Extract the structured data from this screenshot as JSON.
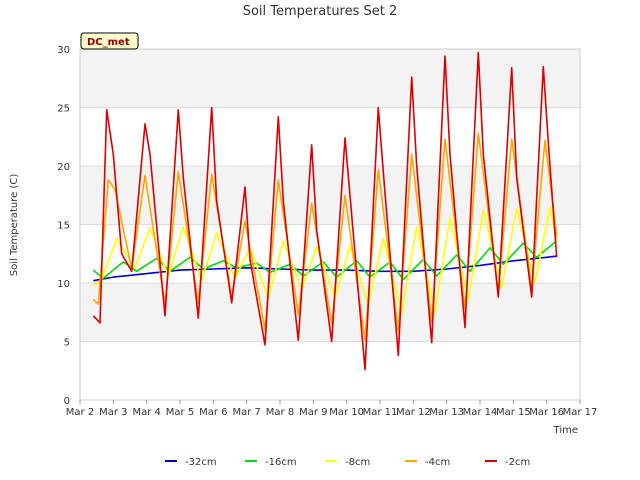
{
  "chart_data": {
    "type": "line",
    "title": "Soil Temperatures Set 2",
    "xlabel": "Time",
    "ylabel": "Soil Temperature (C)",
    "ylim": [
      0,
      30
    ],
    "xlim": [
      0,
      15
    ],
    "x_ticks": [
      {
        "pos": 0,
        "label": "Mar 2"
      },
      {
        "pos": 1,
        "label": "Mar 3"
      },
      {
        "pos": 2,
        "label": "Mar 4"
      },
      {
        "pos": 3,
        "label": "Mar 5"
      },
      {
        "pos": 4,
        "label": "Mar 6"
      },
      {
        "pos": 5,
        "label": "Mar 7"
      },
      {
        "pos": 6,
        "label": "Mar 8"
      },
      {
        "pos": 7,
        "label": "Mar 9"
      },
      {
        "pos": 8,
        "label": "Mar 10"
      },
      {
        "pos": 9,
        "label": "Mar 11"
      },
      {
        "pos": 10,
        "label": "Mar 12"
      },
      {
        "pos": 11,
        "label": "Mar 13"
      },
      {
        "pos": 12,
        "label": "Mar 14"
      },
      {
        "pos": 13,
        "label": "Mar 15"
      },
      {
        "pos": 14,
        "label": "Mar 16"
      },
      {
        "pos": 15,
        "label": "Mar 17"
      }
    ],
    "y_ticks": [
      0,
      5,
      10,
      15,
      20,
      25,
      30
    ],
    "grid": true,
    "legend_position": "bottom",
    "badge": "DC_met",
    "series": [
      {
        "name": "-32cm",
        "color": "#0000cc",
        "x": [
          0.4,
          1,
          2,
          3,
          4,
          5,
          6,
          7,
          8,
          9,
          10,
          11,
          12,
          13,
          14,
          14.3
        ],
        "y": [
          10.2,
          10.5,
          10.8,
          11.1,
          11.2,
          11.3,
          11.2,
          11.1,
          11.1,
          11.0,
          11.0,
          11.2,
          11.5,
          11.9,
          12.2,
          12.3
        ]
      },
      {
        "name": "-16cm",
        "color": "#00dd00",
        "x": [
          0.4,
          0.7,
          1.3,
          1.7,
          2.3,
          2.7,
          3.3,
          3.7,
          4.3,
          4.7,
          5.3,
          5.7,
          6.3,
          6.7,
          7.3,
          7.7,
          8.3,
          8.7,
          9.3,
          9.7,
          10.3,
          10.7,
          11.3,
          11.7,
          12.3,
          12.7,
          13.3,
          13.7,
          14.3
        ],
        "y": [
          11.1,
          10.4,
          11.8,
          11.0,
          12.1,
          11.0,
          12.2,
          11.2,
          11.9,
          11.3,
          11.7,
          10.9,
          11.6,
          10.6,
          11.8,
          10.5,
          11.9,
          10.5,
          11.8,
          10.3,
          12.0,
          10.6,
          12.4,
          11.0,
          13.0,
          11.6,
          13.4,
          12.2,
          13.6
        ]
      },
      {
        "name": "-8cm",
        "color": "#ffff00",
        "x": [
          0.4,
          0.65,
          1.1,
          1.65,
          2.1,
          2.65,
          3.1,
          3.65,
          4.1,
          4.65,
          5.1,
          5.65,
          6.1,
          6.65,
          7.1,
          7.65,
          8.1,
          8.65,
          9.1,
          9.65,
          10.1,
          10.65,
          11.1,
          11.65,
          12.1,
          12.65,
          13.1,
          13.65,
          14.1,
          14.3
        ],
        "y": [
          9.8,
          10.3,
          13.8,
          11.3,
          14.7,
          10.6,
          14.8,
          10.2,
          14.3,
          10.4,
          13.0,
          8.7,
          13.6,
          9.5,
          13.1,
          8.7,
          13.2,
          8.2,
          13.8,
          7.4,
          14.8,
          7.5,
          15.6,
          8.6,
          16.2,
          9.6,
          16.4,
          10.0,
          16.5,
          13.5
        ]
      },
      {
        "name": "-4cm",
        "color": "#ffa500",
        "x": [
          0.4,
          0.55,
          0.85,
          1.05,
          1.55,
          1.95,
          2.55,
          2.95,
          3.55,
          3.95,
          4.55,
          4.95,
          5.55,
          5.95,
          6.55,
          6.95,
          7.55,
          7.95,
          8.55,
          8.95,
          9.55,
          9.95,
          10.55,
          10.95,
          11.55,
          11.95,
          12.55,
          12.95,
          13.55,
          13.95,
          14.3
        ],
        "y": [
          8.6,
          8.2,
          18.8,
          18.0,
          11.2,
          19.2,
          8.2,
          19.5,
          8.3,
          19.3,
          8.8,
          15.3,
          6.0,
          18.8,
          7.3,
          16.8,
          6.5,
          17.5,
          5.1,
          19.7,
          5.9,
          21.0,
          6.7,
          22.3,
          7.8,
          22.8,
          9.2,
          22.3,
          9.6,
          22.2,
          14.0
        ]
      },
      {
        "name": "-2cm",
        "color": "#dd0000",
        "x": [
          0.4,
          0.6,
          0.8,
          1.0,
          1.25,
          1.55,
          1.95,
          2.1,
          2.55,
          2.95,
          3.1,
          3.55,
          3.95,
          4.1,
          4.55,
          4.95,
          5.1,
          5.55,
          5.95,
          6.1,
          6.55,
          6.95,
          7.1,
          7.55,
          7.95,
          8.1,
          8.55,
          8.95,
          9.1,
          9.55,
          9.95,
          10.1,
          10.55,
          10.95,
          11.1,
          11.55,
          11.95,
          12.1,
          12.55,
          12.95,
          13.1,
          13.55,
          13.9,
          14.05,
          14.3
        ],
        "y": [
          7.2,
          6.6,
          24.8,
          21.0,
          12.5,
          11.0,
          23.6,
          21.0,
          7.2,
          24.8,
          19.0,
          7.0,
          25.0,
          17.0,
          8.3,
          18.2,
          12.0,
          4.7,
          24.2,
          17.0,
          5.1,
          21.8,
          14.5,
          5.0,
          22.4,
          17.5,
          2.6,
          25.0,
          19.5,
          3.8,
          27.6,
          20.0,
          4.9,
          29.4,
          21.0,
          6.2,
          29.7,
          21.0,
          8.8,
          28.4,
          19.0,
          8.8,
          28.5,
          22.0,
          12.2
        ]
      }
    ]
  }
}
